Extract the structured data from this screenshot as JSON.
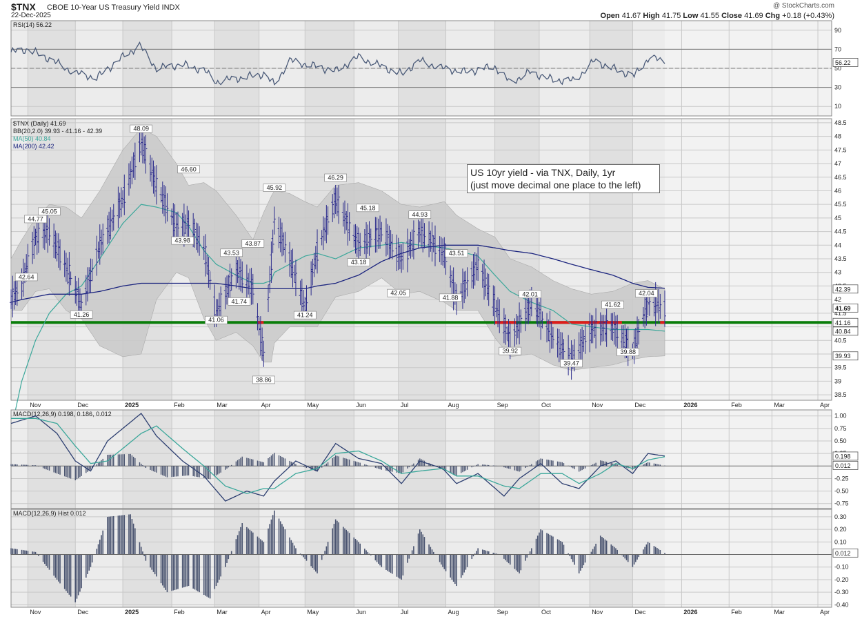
{
  "header": {
    "symbol": "$TNX",
    "name": "CBOE 10-Year US Treasury Yield",
    "exchange": "INDX",
    "date": "22-Dec-2025",
    "watermark": "@ StockCharts.com",
    "open_label": "Open",
    "open": "41.67",
    "high_label": "High",
    "high": "41.75",
    "low_label": "Low",
    "low": "41.55",
    "close_label": "Close",
    "close": "41.69",
    "chg_label": "Chg",
    "chg": "+0.18 (+0.43%)"
  },
  "annotation": {
    "line1": "US 10yr yield - via TNX, Daily, 1yr",
    "line2": "(just move decimal one place to the left)"
  },
  "colors": {
    "price_bar": "#2b2b8c",
    "ma50": "#3aa79a",
    "ma200": "#1a237e",
    "band": "#c9c9c9",
    "support_line": "#0a7d0a",
    "support_red": "#e01b1b",
    "rsi_line": "#4a5a78",
    "macd_line": "#2c3e70",
    "signal_line": "#3aa79a",
    "hist": "#4a5470",
    "panel_bg": "#ececec",
    "panel_shade": "#e0e0e0"
  },
  "chart_data": [
    {
      "type": "line",
      "title": "RSI(14) 56.22",
      "legend": "RSI(14) 56.22",
      "yticks": [
        10,
        30,
        50,
        70,
        90
      ],
      "ylim": [
        0,
        100
      ],
      "reference_lines": [
        30,
        50,
        70
      ],
      "last_value": "56.22",
      "series": [
        {
          "name": "RSI(14)",
          "x": [
            "2024-10-21",
            "2024-11-01",
            "2024-11-15",
            "2024-12-02",
            "2024-12-16",
            "2025-01-02",
            "2025-01-13",
            "2025-01-24",
            "2025-02-10",
            "2025-02-24",
            "2025-03-04",
            "2025-03-20",
            "2025-04-04",
            "2025-04-11",
            "2025-04-21",
            "2025-05-08",
            "2025-05-21",
            "2025-06-05",
            "2025-06-20",
            "2025-07-03",
            "2025-07-15",
            "2025-07-30",
            "2025-08-14",
            "2025-09-02",
            "2025-09-12",
            "2025-09-25",
            "2025-10-10",
            "2025-10-24",
            "2025-11-06",
            "2025-11-21",
            "2025-12-02",
            "2025-12-12",
            "2025-12-22"
          ],
          "values": [
            67,
            70,
            60,
            45,
            40,
            62,
            74,
            50,
            54,
            48,
            36,
            40,
            44,
            33,
            58,
            52,
            47,
            62,
            52,
            44,
            58,
            50,
            46,
            52,
            35,
            46,
            38,
            37,
            58,
            48,
            42,
            62,
            56.22
          ]
        }
      ]
    },
    {
      "type": "bar",
      "title": "$TNX (Daily) 41.69",
      "legend": [
        "$TNX (Daily) 41.69",
        "BB(20,2.0) 39.93 - 41.16 - 42.39",
        "MA(50) 40.84",
        "MA(200) 42.42"
      ],
      "yticks": [
        38.5,
        39.0,
        39.5,
        40.0,
        40.5,
        41.0,
        41.5,
        42.0,
        42.5,
        43.0,
        43.5,
        44.0,
        44.5,
        45.0,
        45.5,
        46.0,
        46.5,
        47.0,
        47.5,
        48.0,
        48.5
      ],
      "ylim": [
        38.3,
        48.65
      ],
      "xlabels": [
        "Nov",
        "Dec",
        "2025",
        "Feb",
        "Mar",
        "Apr",
        "May",
        "Jun",
        "Jul",
        "Aug",
        "Sep",
        "Oct",
        "Nov",
        "Dec",
        "2026",
        "Feb",
        "Mar",
        "Apr"
      ],
      "axis_tags": [
        {
          "value": 42.39,
          "label": "42.39"
        },
        {
          "value": 41.69,
          "label": "41.69",
          "bold": true
        },
        {
          "value": 41.16,
          "label": "41.16"
        },
        {
          "value": 40.84,
          "label": "40.84"
        },
        {
          "value": 39.93,
          "label": "39.93"
        }
      ],
      "support_level": 41.16,
      "price_series": {
        "name": "$TNX",
        "x": [
          "2024-10-21",
          "2024-10-28",
          "2024-11-06",
          "2024-11-15",
          "2024-11-26",
          "2024-12-06",
          "2024-12-18",
          "2025-01-02",
          "2025-01-14",
          "2025-01-24",
          "2025-02-06",
          "2025-02-14",
          "2025-02-24",
          "2025-03-04",
          "2025-03-17",
          "2025-03-28",
          "2025-04-04",
          "2025-04-09",
          "2025-04-11",
          "2025-04-21",
          "2025-05-01",
          "2025-05-09",
          "2025-05-21",
          "2025-06-05",
          "2025-06-20",
          "2025-07-03",
          "2025-07-15",
          "2025-07-31",
          "2025-08-08",
          "2025-08-22",
          "2025-09-02",
          "2025-09-12",
          "2025-09-26",
          "2025-10-10",
          "2025-10-22",
          "2025-11-04",
          "2025-11-18",
          "2025-12-01",
          "2025-12-11",
          "2025-12-22"
        ],
        "close": [
          42.0,
          42.6,
          44.3,
          44.5,
          43.2,
          41.8,
          44.0,
          45.7,
          47.8,
          46.2,
          44.7,
          44.8,
          43.9,
          41.5,
          43.1,
          42.4,
          40.0,
          43.4,
          44.9,
          43.5,
          41.7,
          43.8,
          45.7,
          44.0,
          44.5,
          43.5,
          44.5,
          43.7,
          42.0,
          43.3,
          41.8,
          40.5,
          41.9,
          40.6,
          39.8,
          40.9,
          41.0,
          40.1,
          41.9,
          41.69
        ]
      },
      "ma50": {
        "name": "MA(50)",
        "values": [
          37.2,
          39.0,
          40.5,
          41.5,
          42.2,
          42.5,
          43.5,
          44.8,
          45.5,
          45.4,
          45.2,
          44.7,
          43.8,
          43.3,
          42.9,
          42.6,
          42.6,
          42.7,
          43.0,
          43.3,
          43.6,
          43.7,
          43.5,
          43.9,
          44.0,
          44.1,
          44.0,
          43.9,
          43.8,
          43.6,
          42.9,
          42.3,
          41.9,
          41.6,
          41.1,
          41.0,
          40.9,
          40.9,
          40.9,
          40.84
        ]
      },
      "ma200": {
        "name": "MA(200)",
        "values": [
          41.9,
          42.0,
          42.1,
          42.2,
          42.2,
          42.2,
          42.3,
          42.5,
          42.6,
          42.6,
          42.6,
          42.6,
          42.6,
          42.6,
          42.5,
          42.4,
          42.4,
          42.4,
          42.4,
          42.4,
          42.4,
          42.5,
          42.6,
          42.9,
          43.4,
          43.7,
          43.9,
          44.0,
          44.0,
          44.0,
          43.9,
          43.8,
          43.7,
          43.5,
          43.3,
          43.1,
          42.9,
          42.6,
          42.45,
          42.42
        ]
      },
      "bb_upper": [
        43.5,
        44.2,
        45.0,
        45.5,
        45.4,
        45.0,
        46.0,
        47.5,
        48.3,
        48.0,
        47.0,
        46.2,
        46.3,
        46.0,
        45.1,
        44.2,
        45.2,
        45.8,
        46.0,
        45.9,
        45.6,
        45.4,
        46.2,
        46.3,
        46.0,
        45.5,
        45.4,
        45.6,
        45.1,
        44.6,
        44.3,
        43.5,
        43.2,
        42.7,
        42.4,
        42.2,
        42.3,
        42.6,
        42.7,
        42.39
      ],
      "bb_lower": [
        41.6,
        41.6,
        42.3,
        42.4,
        41.6,
        41.3,
        40.3,
        39.9,
        40.0,
        42.0,
        43.0,
        42.8,
        41.3,
        40.5,
        40.8,
        40.3,
        39.7,
        39.7,
        40.4,
        41.0,
        41.0,
        41.0,
        42.1,
        42.3,
        42.8,
        42.2,
        42.3,
        41.9,
        41.6,
        41.6,
        40.6,
        39.9,
        40.0,
        39.6,
        39.4,
        39.5,
        39.6,
        39.8,
        39.9,
        39.93
      ],
      "labels": [
        {
          "x": "2024-10-31",
          "y": 42.64,
          "text": "42.64"
        },
        {
          "x": "2024-11-06",
          "y": 44.77,
          "text": "44.77"
        },
        {
          "x": "2024-11-15",
          "y": 45.05,
          "text": "45.05"
        },
        {
          "x": "2024-12-06",
          "y": 41.26,
          "text": "41.26"
        },
        {
          "x": "2025-01-14",
          "y": 48.09,
          "text": "48.09"
        },
        {
          "x": "2025-02-10",
          "y": 43.98,
          "text": "43.98"
        },
        {
          "x": "2025-02-14",
          "y": 46.6,
          "text": "46.60"
        },
        {
          "x": "2025-03-04",
          "y": 41.06,
          "text": "41.06"
        },
        {
          "x": "2025-03-14",
          "y": 43.53,
          "text": "43.53"
        },
        {
          "x": "2025-03-19",
          "y": 41.74,
          "text": "41.74"
        },
        {
          "x": "2025-03-28",
          "y": 43.87,
          "text": "43.87"
        },
        {
          "x": "2025-04-04",
          "y": 38.86,
          "text": "38.86"
        },
        {
          "x": "2025-04-11",
          "y": 45.92,
          "text": "45.92"
        },
        {
          "x": "2025-05-01",
          "y": 41.24,
          "text": "41.24"
        },
        {
          "x": "2025-05-21",
          "y": 46.29,
          "text": "46.29"
        },
        {
          "x": "2025-06-05",
          "y": 43.18,
          "text": "43.18"
        },
        {
          "x": "2025-06-11",
          "y": 45.18,
          "text": "45.18"
        },
        {
          "x": "2025-07-01",
          "y": 42.05,
          "text": "42.05"
        },
        {
          "x": "2025-07-15",
          "y": 44.93,
          "text": "44.93"
        },
        {
          "x": "2025-08-04",
          "y": 41.88,
          "text": "41.88"
        },
        {
          "x": "2025-08-08",
          "y": 43.51,
          "text": "43.51"
        },
        {
          "x": "2025-09-12",
          "y": 39.92,
          "text": "39.92"
        },
        {
          "x": "2025-09-25",
          "y": 42.01,
          "text": "42.01"
        },
        {
          "x": "2025-10-22",
          "y": 39.47,
          "text": "39.47"
        },
        {
          "x": "2025-11-18",
          "y": 41.62,
          "text": "41.62"
        },
        {
          "x": "2025-11-28",
          "y": 39.88,
          "text": "39.88"
        },
        {
          "x": "2025-12-10",
          "y": 42.04,
          "text": "42.04"
        }
      ]
    },
    {
      "type": "line",
      "title": "MACD(12,26,9) 0.198, 0.186, 0.012",
      "legend": "MACD(12,26,9) 0.198, 0.186, 0.012",
      "yticks": [
        -0.75,
        -0.5,
        -0.25,
        0.25,
        0.5,
        0.75,
        1.0
      ],
      "ylim": [
        -0.85,
        1.12
      ],
      "axis_tags": [
        {
          "value": 0.198,
          "label": "0.198"
        },
        {
          "value": 0.012,
          "label": "0.012"
        }
      ],
      "series": [
        {
          "name": "MACD",
          "x": [
            "2024-10-21",
            "2024-11-06",
            "2024-11-20",
            "2024-12-02",
            "2024-12-12",
            "2024-12-23",
            "2025-01-14",
            "2025-01-24",
            "2025-02-10",
            "2025-02-24",
            "2025-03-10",
            "2025-03-24",
            "2025-04-04",
            "2025-04-11",
            "2025-04-25",
            "2025-05-09",
            "2025-05-21",
            "2025-06-05",
            "2025-06-20",
            "2025-07-03",
            "2025-07-15",
            "2025-07-30",
            "2025-08-08",
            "2025-08-22",
            "2025-09-08",
            "2025-09-18",
            "2025-10-02",
            "2025-10-16",
            "2025-10-27",
            "2025-11-10",
            "2025-11-20",
            "2025-12-01",
            "2025-12-11",
            "2025-12-22"
          ],
          "values": [
            0.85,
            1.0,
            0.65,
            0.1,
            -0.1,
            0.5,
            1.05,
            0.6,
            0.1,
            -0.2,
            -0.7,
            -0.5,
            -0.6,
            -0.3,
            0.1,
            -0.1,
            0.45,
            0.15,
            0.05,
            -0.35,
            0.1,
            -0.05,
            -0.35,
            -0.15,
            -0.6,
            -0.25,
            0.05,
            -0.35,
            -0.45,
            0.0,
            0.1,
            -0.15,
            0.25,
            0.198
          ]
        },
        {
          "name": "Signal",
          "x": [
            "2024-10-21",
            "2024-11-06",
            "2024-11-20",
            "2024-12-02",
            "2024-12-12",
            "2024-12-23",
            "2025-01-14",
            "2025-01-24",
            "2025-02-10",
            "2025-02-24",
            "2025-03-10",
            "2025-03-24",
            "2025-04-04",
            "2025-04-11",
            "2025-04-25",
            "2025-05-09",
            "2025-05-21",
            "2025-06-05",
            "2025-06-20",
            "2025-07-03",
            "2025-07-15",
            "2025-07-30",
            "2025-08-08",
            "2025-08-22",
            "2025-09-08",
            "2025-09-18",
            "2025-10-02",
            "2025-10-16",
            "2025-10-27",
            "2025-11-10",
            "2025-11-20",
            "2025-12-01",
            "2025-12-11",
            "2025-12-22"
          ],
          "values": [
            0.95,
            0.95,
            0.85,
            0.4,
            0.05,
            0.1,
            0.65,
            0.8,
            0.35,
            0.0,
            -0.4,
            -0.55,
            -0.45,
            -0.45,
            -0.15,
            -0.05,
            0.25,
            0.3,
            0.1,
            -0.15,
            -0.1,
            -0.05,
            -0.2,
            -0.2,
            -0.4,
            -0.45,
            -0.15,
            -0.15,
            -0.35,
            -0.15,
            0.05,
            -0.05,
            0.12,
            0.186
          ]
        }
      ]
    },
    {
      "type": "bar",
      "title": "MACD(12,26,9) Hist 0.012",
      "legend": "MACD(12,26,9) Hist 0.012",
      "yticks": [
        -0.4,
        -0.3,
        -0.2,
        -0.1,
        0.1,
        0.2,
        0.3
      ],
      "ylim": [
        -0.42,
        0.36
      ],
      "axis_tags": [
        {
          "value": 0.012,
          "label": "0.012"
        }
      ],
      "series": [
        {
          "name": "Hist",
          "x": [
            "2024-10-21",
            "2024-11-06",
            "2024-11-20",
            "2024-12-02",
            "2024-12-12",
            "2024-12-23",
            "2025-01-07",
            "2025-01-17",
            "2025-01-31",
            "2025-02-14",
            "2025-02-28",
            "2025-03-10",
            "2025-03-21",
            "2025-04-04",
            "2025-04-11",
            "2025-04-25",
            "2025-05-09",
            "2025-05-21",
            "2025-06-05",
            "2025-06-20",
            "2025-07-03",
            "2025-07-15",
            "2025-07-30",
            "2025-08-08",
            "2025-08-22",
            "2025-09-05",
            "2025-09-18",
            "2025-10-02",
            "2025-10-16",
            "2025-10-27",
            "2025-11-10",
            "2025-11-20",
            "2025-12-01",
            "2025-12-11",
            "2025-12-22"
          ],
          "values": [
            0.05,
            0.02,
            -0.2,
            -0.38,
            -0.1,
            0.3,
            0.32,
            -0.05,
            -0.3,
            -0.25,
            -0.35,
            -0.1,
            0.25,
            0.1,
            0.35,
            0.05,
            -0.15,
            0.28,
            0.1,
            -0.1,
            -0.2,
            0.2,
            -0.1,
            -0.25,
            0.05,
            0.0,
            -0.15,
            0.2,
            0.1,
            -0.15,
            0.15,
            0.05,
            -0.1,
            0.1,
            0.012
          ]
        }
      ]
    }
  ]
}
